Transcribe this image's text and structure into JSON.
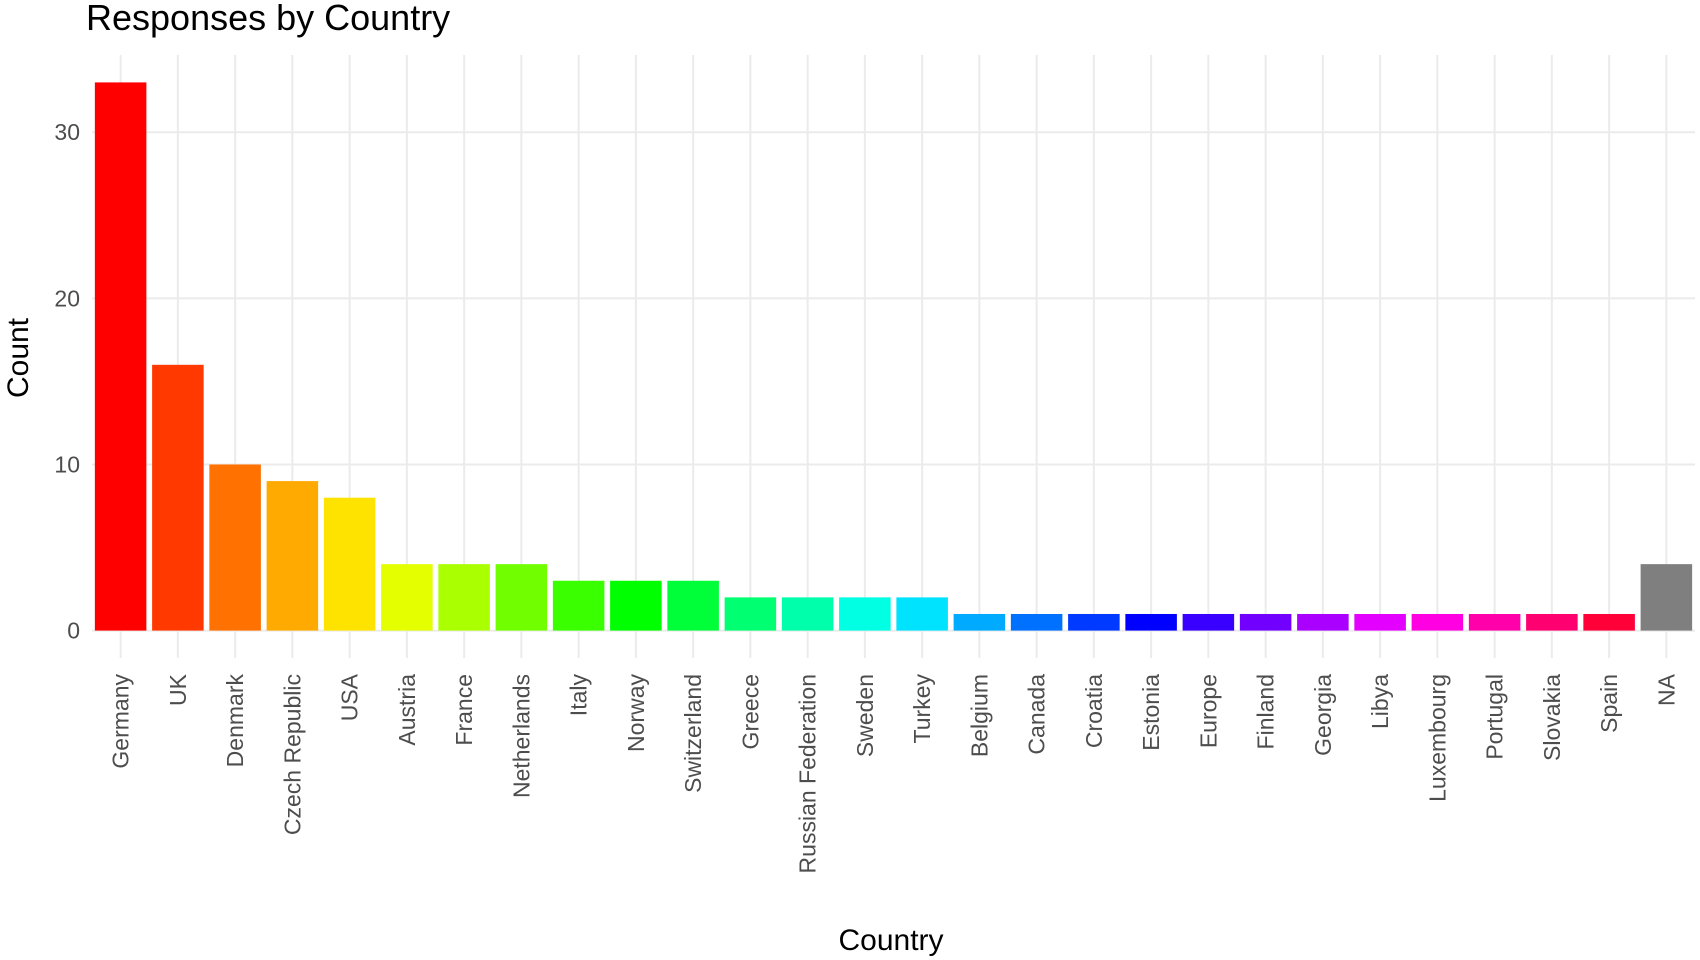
{
  "chart_data": {
    "type": "bar",
    "title": "Responses by Country",
    "x_label": "Country",
    "y_label": "Count",
    "categories": [
      "Germany",
      "UK",
      "Denmark",
      "Czech Republic",
      "USA",
      "Austria",
      "France",
      "Netherlands",
      "Italy",
      "Norway",
      "Switzerland",
      "Greece",
      "Russian Federation",
      "Sweden",
      "Turkey",
      "Belgium",
      "Canada",
      "Croatia",
      "Estonia",
      "Europe",
      "Finland",
      "Georgia",
      "Libya",
      "Luxembourg",
      "Portugal",
      "Slovakia",
      "Spain",
      "NA"
    ],
    "values": [
      33,
      16,
      10,
      9,
      8,
      4,
      4,
      4,
      3,
      3,
      3,
      2,
      2,
      2,
      2,
      1,
      1,
      1,
      1,
      1,
      1,
      1,
      1,
      1,
      1,
      1,
      1,
      4
    ],
    "colors": [
      "#FF0000",
      "#FF3900",
      "#FF7100",
      "#FFAA00",
      "#FFE300",
      "#E3FF00",
      "#AAFF00",
      "#71FF00",
      "#39FF00",
      "#00FF00",
      "#00FF39",
      "#00FF71",
      "#00FFAA",
      "#00FFE3",
      "#00E3FF",
      "#00AAFF",
      "#0071FF",
      "#0039FF",
      "#0000FF",
      "#3900FF",
      "#7100FF",
      "#AA00FF",
      "#E300FF",
      "#FF00E3",
      "#FF00AA",
      "#FF0071",
      "#FF0039",
      "#7F7F7F"
    ],
    "ylim": [
      -1.65,
      34.65
    ],
    "yticks": [
      0,
      10,
      20,
      30
    ],
    "grid": true
  }
}
